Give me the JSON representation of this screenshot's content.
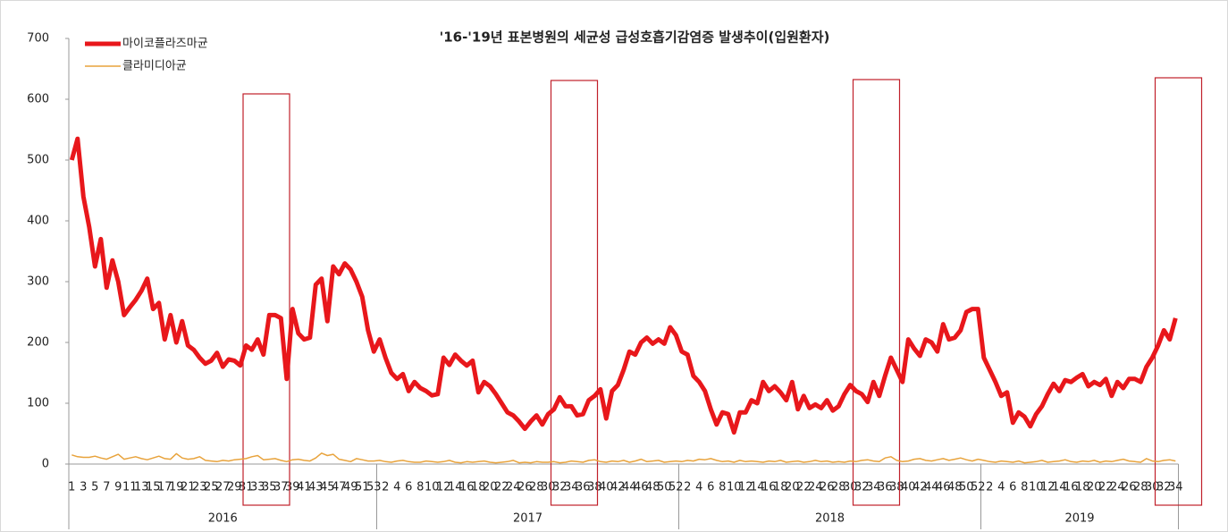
{
  "chart_data": {
    "type": "line",
    "title": "'16-'19년  표본병원의 세균성 급성호흡기감염증 발생추이(입원환자)",
    "years": [
      "2016",
      "2017",
      "2018",
      "2019"
    ],
    "categories": [
      1,
      null,
      3,
      null,
      5,
      null,
      7,
      null,
      9,
      null,
      11,
      null,
      13,
      null,
      15,
      null,
      17,
      null,
      19,
      null,
      21,
      null,
      23,
      null,
      25,
      null,
      27,
      null,
      29,
      null,
      31,
      null,
      33,
      null,
      35,
      null,
      37,
      null,
      39,
      null,
      41,
      null,
      43,
      null,
      45,
      null,
      47,
      null,
      49,
      null,
      51,
      null,
      53,
      null,
      2,
      null,
      4,
      null,
      6,
      null,
      8,
      null,
      10,
      null,
      12,
      null,
      14,
      null,
      16,
      null,
      18,
      null,
      20,
      null,
      22,
      null,
      24,
      null,
      26,
      null,
      28,
      null,
      30,
      null,
      32,
      null,
      34,
      null,
      36,
      null,
      38,
      null,
      40,
      null,
      42,
      null,
      44,
      null,
      46,
      null,
      48,
      null,
      50,
      null,
      52,
      null,
      2,
      null,
      4,
      null,
      6,
      null,
      8,
      null,
      10,
      null,
      12,
      null,
      14,
      null,
      16,
      null,
      18,
      null,
      20,
      null,
      22,
      null,
      24,
      null,
      26,
      null,
      28,
      null,
      30,
      null,
      32,
      null,
      34,
      null,
      36,
      null,
      38,
      null,
      40,
      null,
      42,
      null,
      44,
      null,
      46,
      null,
      48,
      null,
      50,
      null,
      52,
      null,
      2,
      null,
      4,
      null,
      6,
      null,
      8,
      null,
      10,
      null,
      12,
      null,
      14,
      null,
      16,
      null,
      18,
      null,
      20,
      null,
      22,
      null,
      24,
      null,
      26,
      null,
      28,
      null,
      30,
      null,
      32,
      null,
      34
    ],
    "series": [
      {
        "name": "마이코플라즈마균",
        "color": "#e8171b",
        "width": 5,
        "values": [
          500,
          535,
          440,
          390,
          325,
          370,
          290,
          335,
          300,
          245,
          258,
          270,
          285,
          305,
          255,
          265,
          205,
          245,
          200,
          235,
          195,
          188,
          175,
          165,
          170,
          183,
          160,
          172,
          170,
          162,
          195,
          188,
          205,
          180,
          245,
          245,
          240,
          140,
          255,
          215,
          205,
          208,
          295,
          305,
          235,
          325,
          312,
          330,
          320,
          300,
          275,
          220,
          185,
          205,
          175,
          150,
          140,
          148,
          120,
          135,
          125,
          120,
          113,
          115,
          175,
          163,
          180,
          170,
          162,
          170,
          118,
          135,
          128,
          115,
          100,
          85,
          80,
          70,
          58,
          70,
          80,
          65,
          82,
          90,
          110,
          95,
          95,
          80,
          82,
          105,
          112,
          123,
          75,
          120,
          130,
          155,
          185,
          180,
          200,
          208,
          198,
          205,
          198,
          225,
          212,
          185,
          180,
          145,
          135,
          120,
          90,
          65,
          85,
          82,
          52,
          85,
          85,
          105,
          100,
          135,
          120,
          128,
          118,
          105,
          135,
          90,
          112,
          92,
          98,
          92,
          105,
          88,
          95,
          115,
          130,
          120,
          115,
          102,
          135,
          112,
          145,
          175,
          155,
          135,
          205,
          190,
          178,
          205,
          200,
          185,
          230,
          205,
          208,
          220,
          250,
          255,
          255,
          175,
          155,
          135,
          112,
          118,
          68,
          85,
          78,
          62,
          82,
          95,
          115,
          132,
          120,
          138,
          135,
          142,
          148,
          128,
          135,
          130,
          140,
          112,
          135,
          125,
          140,
          140,
          135,
          160,
          175,
          195,
          220,
          205,
          240
        ]
      },
      {
        "name": "클라미디아균",
        "color": "#e8a33c",
        "width": 1.5,
        "values": [
          15,
          12,
          11,
          11,
          13,
          10,
          8,
          12,
          16,
          8,
          10,
          12,
          9,
          7,
          10,
          13,
          9,
          8,
          17,
          10,
          8,
          9,
          12,
          6,
          5,
          4,
          6,
          5,
          7,
          8,
          9,
          12,
          14,
          7,
          8,
          9,
          6,
          4,
          7,
          8,
          6,
          5,
          10,
          18,
          14,
          16,
          8,
          6,
          4,
          9,
          7,
          5,
          5,
          6,
          4,
          3,
          5,
          6,
          4,
          3,
          3,
          5,
          4,
          3,
          4,
          6,
          3,
          2,
          4,
          3,
          4,
          5,
          3,
          2,
          3,
          4,
          6,
          2,
          3,
          2,
          4,
          3,
          3,
          4,
          2,
          3,
          5,
          4,
          3,
          6,
          7,
          4,
          3,
          5,
          4,
          6,
          3,
          5,
          8,
          4,
          5,
          6,
          3,
          4,
          5,
          4,
          6,
          5,
          8,
          7,
          9,
          6,
          4,
          5,
          3,
          6,
          4,
          5,
          4,
          3,
          5,
          4,
          6,
          3,
          4,
          5,
          3,
          4,
          6,
          4,
          5,
          3,
          4,
          3,
          5,
          4,
          6,
          7,
          5,
          4,
          10,
          12,
          6,
          4,
          5,
          8,
          9,
          6,
          5,
          7,
          9,
          6,
          8,
          10,
          7,
          5,
          8,
          6,
          4,
          3,
          5,
          4,
          3,
          5,
          2,
          3,
          4,
          6,
          3,
          4,
          5,
          7,
          4,
          3,
          5,
          4,
          6,
          3,
          5,
          4,
          6,
          8,
          5,
          4,
          3,
          9,
          5,
          4,
          6,
          7,
          5
        ]
      }
    ],
    "ylim": [
      0,
      700
    ],
    "yticks": [
      0,
      100,
      200,
      300,
      400,
      500,
      600,
      700
    ],
    "grid": false,
    "legend": "top-left"
  }
}
